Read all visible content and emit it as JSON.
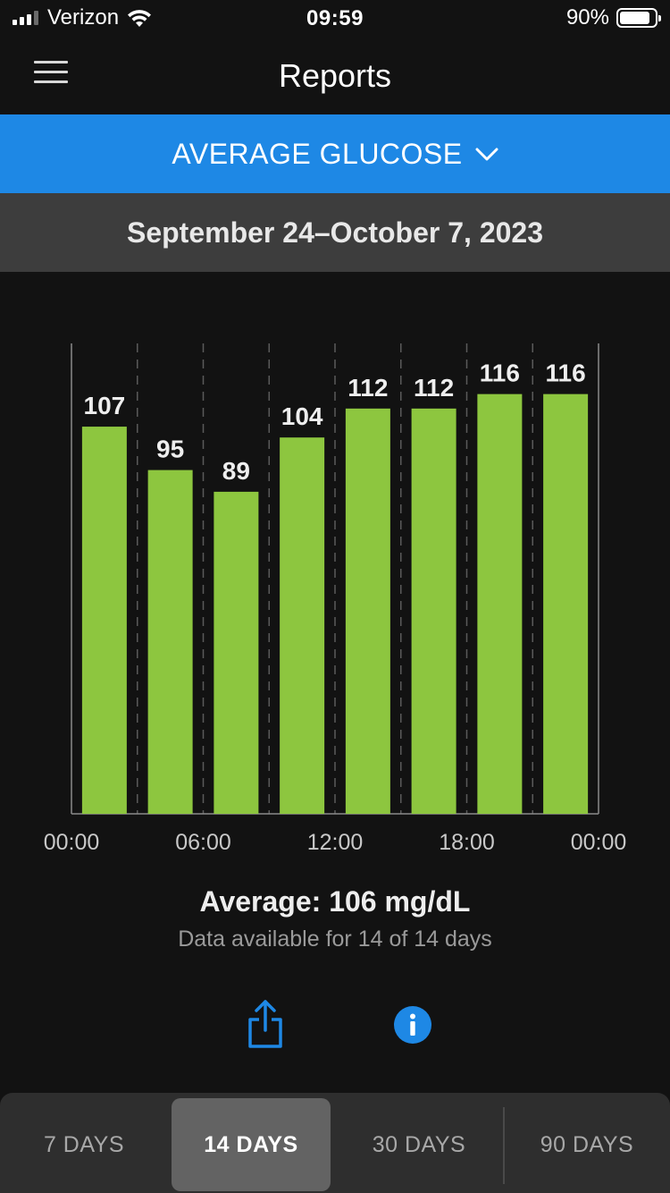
{
  "status_bar": {
    "carrier": "Verizon",
    "time": "09:59",
    "battery": "90%"
  },
  "nav": {
    "title": "Reports",
    "menu_icon": "hamburger-menu-icon"
  },
  "report_selector": {
    "label": "AVERAGE GLUCOSE",
    "icon": "chevron-down-icon"
  },
  "date_range": "September 24–October 7, 2023",
  "chart_data": {
    "type": "bar",
    "categories": [
      "00:00–03:00",
      "03:00–06:00",
      "06:00–09:00",
      "09:00–12:00",
      "12:00–15:00",
      "15:00–18:00",
      "18:00–21:00",
      "21:00–00:00"
    ],
    "values": [
      107,
      95,
      89,
      104,
      112,
      112,
      116,
      116
    ],
    "x_tick_labels": [
      "00:00",
      "06:00",
      "12:00",
      "18:00",
      "00:00"
    ],
    "ylim": [
      0,
      130
    ],
    "bar_color": "#8dc63f",
    "grid": "vertical dashed",
    "title": "",
    "xlabel": "",
    "ylabel": ""
  },
  "summary": {
    "average": "Average: 106 mg/dL",
    "availability": "Data available for 14 of 14 days"
  },
  "actions": {
    "share_icon": "share-icon",
    "info_icon": "info-icon",
    "accent": "#1e88e5"
  },
  "period_tabs": [
    {
      "label": "7 DAYS",
      "active": false
    },
    {
      "label": "14 DAYS",
      "active": true
    },
    {
      "label": "30 DAYS",
      "active": false
    },
    {
      "label": "90 DAYS",
      "active": false
    }
  ]
}
